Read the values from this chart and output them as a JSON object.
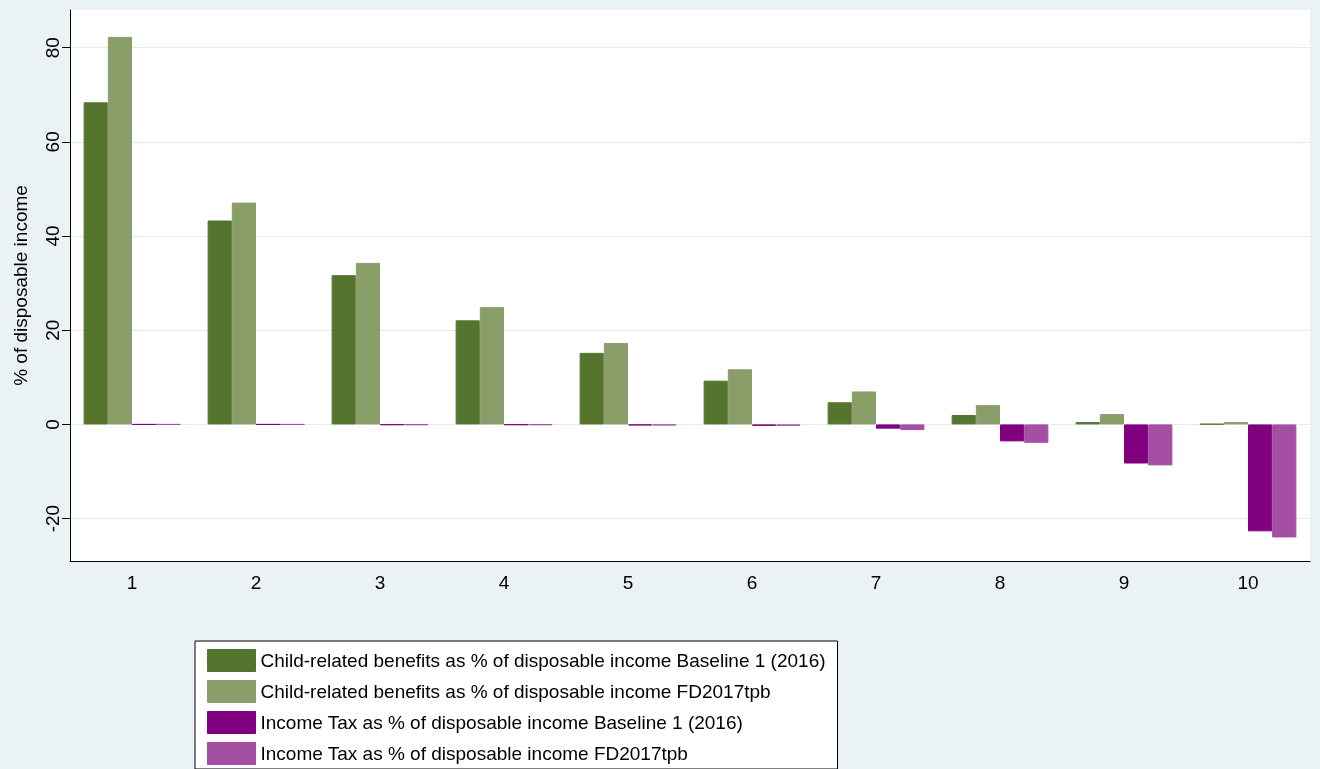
{
  "chart_data": {
    "type": "bar",
    "ylabel": "% of disposable income",
    "categories": [
      "1",
      "2",
      "3",
      "4",
      "5",
      "6",
      "7",
      "8",
      "9",
      "10"
    ],
    "series": [
      {
        "name": "Child-related benefits as % of disposable income Baseline 1 (2016)",
        "color": "#55752f",
        "values": [
          68.4,
          43.3,
          31.7,
          22.1,
          15.2,
          9.3,
          4.7,
          2.0,
          0.5,
          0.1
        ]
      },
      {
        "name": "Child-related benefits as % of disposable income FD2017tpb",
        "color": "#8a9e6a",
        "values": [
          82.3,
          47.1,
          34.3,
          24.9,
          17.3,
          11.7,
          7.0,
          4.1,
          2.2,
          0.5
        ]
      },
      {
        "name": "Income Tax as % of disposable income Baseline 1 (2016)",
        "color": "#800080",
        "values": [
          0,
          0,
          -0.1,
          -0.1,
          -0.2,
          -0.3,
          -0.9,
          -3.6,
          -8.3,
          -22.7
        ]
      },
      {
        "name": "Income Tax as % of disposable income FD2017tpb",
        "color": "#a44fa4",
        "values": [
          0,
          0,
          -0.1,
          -0.1,
          -0.2,
          -0.3,
          -1.2,
          -3.9,
          -8.7,
          -24.0
        ]
      }
    ],
    "ylim": [
      -29,
      88
    ],
    "yticks": [
      -20,
      0,
      20,
      40,
      60,
      80
    ],
    "grid": "y",
    "legend": "bottom"
  }
}
